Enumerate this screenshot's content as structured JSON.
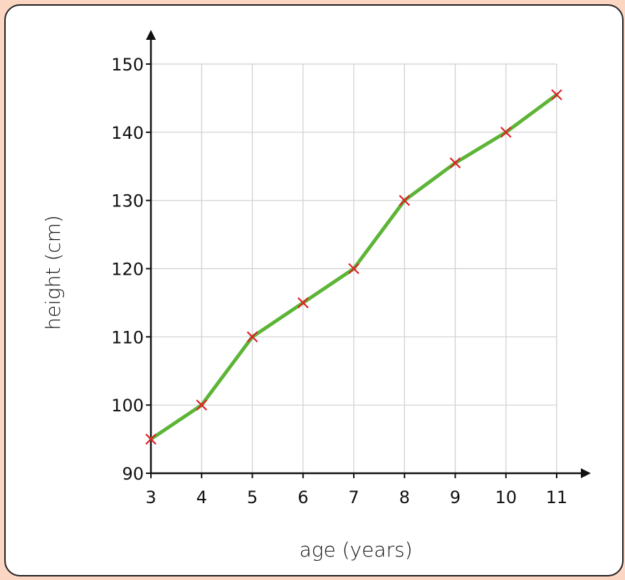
{
  "chart_data": {
    "type": "line",
    "xlabel": "age (years)",
    "ylabel": "height (cm)",
    "x": [
      3,
      4,
      5,
      6,
      7,
      8,
      9,
      10,
      11
    ],
    "xlim": [
      3,
      11
    ],
    "ylim": [
      90,
      150
    ],
    "x_ticks": [
      3,
      4,
      5,
      6,
      7,
      8,
      9,
      10,
      11
    ],
    "y_ticks": [
      90,
      100,
      110,
      120,
      130,
      140,
      150
    ],
    "grid": true,
    "series": [
      {
        "values": [
          95,
          100,
          110,
          115,
          120,
          130,
          135.5,
          140,
          145.5
        ],
        "line_color": "#5cb536",
        "marker": "x",
        "marker_color": "#e0202a"
      }
    ]
  }
}
